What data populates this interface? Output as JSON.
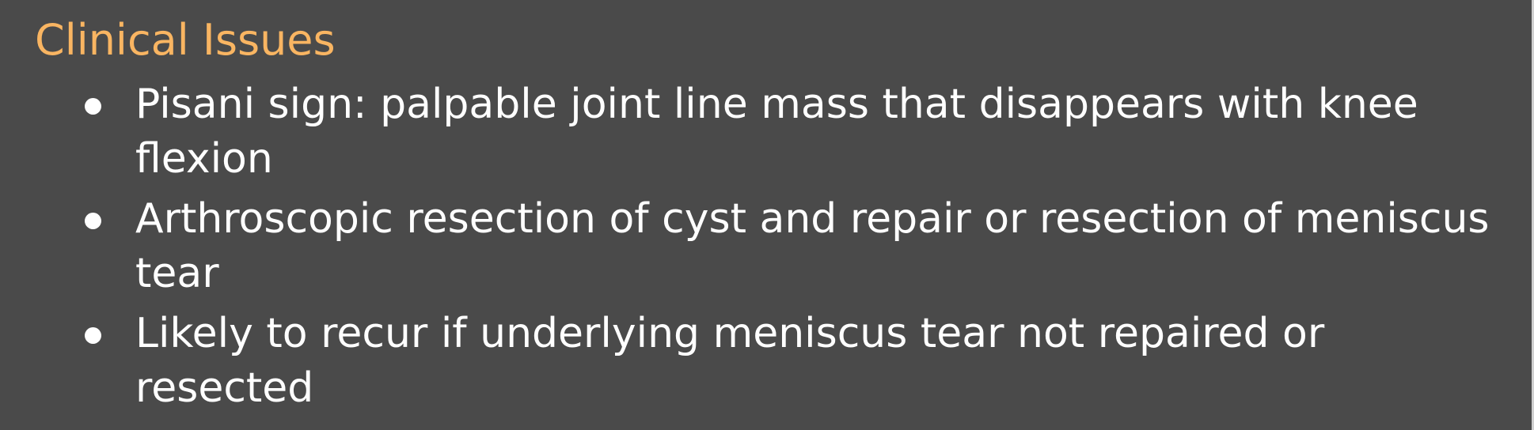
{
  "slide": {
    "title": "Clinical Issues",
    "bullets": [
      "Pisani sign: palpable joint line mass that disappears with knee flexion",
      "Arthroscopic resection of cyst and repair or resection of meniscus tear",
      "Likely to recur if underlying meniscus tear not repaired or resected"
    ]
  },
  "colors": {
    "background": "#4a4a4a",
    "title": "#f9b562",
    "text": "#ffffff"
  }
}
